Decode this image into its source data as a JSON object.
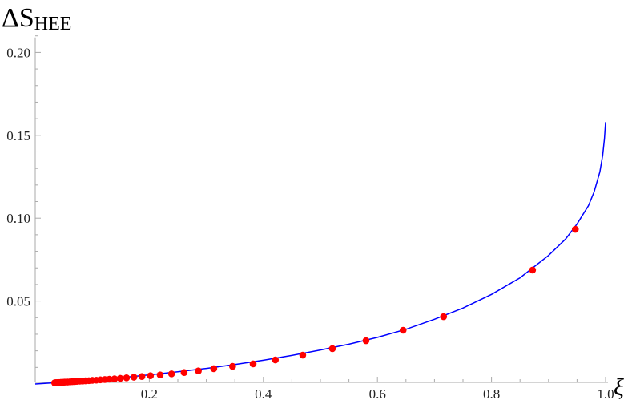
{
  "chart_data": {
    "type": "line",
    "xlabel": "ξ",
    "ylabel_main": "ΔS",
    "ylabel_sub": "HEE",
    "xlim": [
      0,
      1.0
    ],
    "ylim": [
      0,
      0.21
    ],
    "x_ticks": [
      0.2,
      0.4,
      0.6,
      0.8,
      1.0
    ],
    "x_tick_labels": [
      "0.2",
      "0.4",
      "0.6",
      "0.8",
      "1.0"
    ],
    "y_ticks": [
      0.05,
      0.1,
      0.15,
      0.2
    ],
    "y_tick_labels": [
      "0.05",
      "0.10",
      "0.15",
      "0.20"
    ],
    "grid": false,
    "colors": {
      "curve": "#0000ff",
      "points": "#ff0000",
      "axis": "#aaaaaa"
    },
    "series": [
      {
        "type": "line",
        "x": [
          0,
          0.05,
          0.1,
          0.15,
          0.2,
          0.25,
          0.3,
          0.35,
          0.4,
          0.45,
          0.5,
          0.55,
          0.6,
          0.65,
          0.7,
          0.75,
          0.8,
          0.85,
          0.9,
          0.93,
          0.95,
          0.97,
          0.98,
          0.99,
          0.995,
          0.998,
          1.0
        ],
        "y": [
          0,
          0.0011,
          0.0023,
          0.0038,
          0.0055,
          0.0074,
          0.0094,
          0.0117,
          0.0143,
          0.0172,
          0.0205,
          0.024,
          0.0281,
          0.033,
          0.039,
          0.0458,
          0.054,
          0.064,
          0.0775,
          0.0875,
          0.0965,
          0.1075,
          0.116,
          0.128,
          0.138,
          0.148,
          0.158
        ]
      },
      {
        "type": "scatter",
        "x": [
          0.947,
          0.872,
          0.716,
          0.645,
          0.58,
          0.521,
          0.469,
          0.421,
          0.382,
          0.346,
          0.313,
          0.286,
          0.261,
          0.239,
          0.219,
          0.202,
          0.187,
          0.173,
          0.16,
          0.149,
          0.139,
          0.13,
          0.122,
          0.114,
          0.107,
          0.1,
          0.094,
          0.088,
          0.083,
          0.078,
          0.073,
          0.069,
          0.065,
          0.061,
          0.057,
          0.054,
          0.051,
          0.048,
          0.045,
          0.042,
          0.04,
          0.038,
          0.036,
          0.034
        ],
        "y": [
          0.0933,
          0.0687,
          0.0406,
          0.0324,
          0.0261,
          0.0213,
          0.0174,
          0.0145,
          0.0121,
          0.0106,
          0.0092,
          0.0079,
          0.0069,
          0.0061,
          0.0055,
          0.005,
          0.0045,
          0.0041,
          0.0037,
          0.0034,
          0.0031,
          0.0029,
          0.0027,
          0.0025,
          0.0023,
          0.0022,
          0.002,
          0.0019,
          0.0018,
          0.0017,
          0.0016,
          0.0015,
          0.0014,
          0.0013,
          0.0012,
          0.0012,
          0.0011,
          0.001,
          0.001,
          0.0009,
          0.0009,
          0.0008,
          0.0008,
          0.0007
        ]
      }
    ]
  }
}
